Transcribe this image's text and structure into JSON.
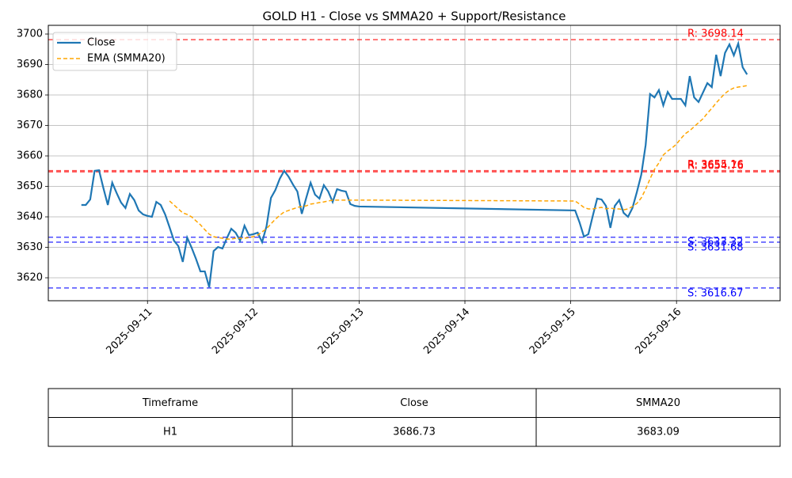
{
  "chart_data": {
    "type": "line",
    "title": "GOLD H1 - Close vs SMMA20 + Support/Resistance",
    "x": [
      -15,
      -14,
      -13,
      -12,
      -11,
      -10,
      -9,
      -8,
      -7,
      -6,
      -5,
      -4,
      -3,
      -2,
      -1,
      0,
      1,
      2,
      3,
      4,
      5,
      6,
      7,
      8,
      9,
      10,
      11,
      12,
      13,
      14,
      15,
      16,
      17,
      18,
      19,
      20,
      21,
      22,
      23,
      24,
      25,
      26,
      27,
      28,
      29,
      30,
      31,
      32,
      33,
      34,
      35,
      36,
      37,
      38,
      39,
      40,
      41,
      42,
      43,
      44,
      45,
      46,
      47,
      48,
      97,
      98,
      99,
      100,
      101,
      102,
      103,
      104,
      105,
      106,
      107,
      108,
      109,
      110,
      111,
      112,
      113,
      114,
      115,
      116,
      117,
      118,
      119,
      120,
      121,
      122,
      123,
      124,
      125,
      126,
      127,
      128,
      129,
      130,
      131,
      132,
      133,
      134,
      135,
      136
    ],
    "series": [
      {
        "name": "Close",
        "color": "#1f77b4",
        "dash": false,
        "values": [
          3643.9,
          3643.9,
          3645.7,
          3655.1,
          3655.3,
          3649.4,
          3643.9,
          3651.2,
          3647.8,
          3644.7,
          3642.9,
          3647.5,
          3645.5,
          3642.1,
          3640.8,
          3640.3,
          3640.0,
          3644.9,
          3643.9,
          3640.8,
          3636.6,
          3632.2,
          3630.4,
          3625.2,
          3633.2,
          3629.9,
          3626.2,
          3622.1,
          3622.1,
          3616.9,
          3628.8,
          3630.1,
          3629.6,
          3633.0,
          3636.1,
          3634.8,
          3632.2,
          3637.1,
          3634.0,
          3634.3,
          3634.8,
          3631.7,
          3636.9,
          3646.2,
          3648.8,
          3652.5,
          3655.1,
          3653.2,
          3650.6,
          3648.3,
          3641.0,
          3646.2,
          3651.2,
          3647.3,
          3646.0,
          3650.4,
          3648.3,
          3644.9,
          3649.1,
          3648.6,
          3648.3,
          3644.2,
          3643.6,
          3643.4,
          3642.1,
          3638.2,
          3633.5,
          3634.3,
          3640.3,
          3646.0,
          3645.7,
          3643.6,
          3636.4,
          3643.6,
          3645.5,
          3641.3,
          3640.0,
          3642.9,
          3648.1,
          3653.8,
          3663.6,
          3680.3,
          3679.2,
          3681.6,
          3676.6,
          3681.0,
          3678.7,
          3678.7,
          3678.7,
          3676.6,
          3686.2,
          3679.2,
          3677.7,
          3680.8,
          3683.9,
          3682.6,
          3693.2,
          3686.2,
          3693.8,
          3696.6,
          3693.0,
          3696.9,
          3689.1,
          3686.73
        ]
      },
      {
        "name": "EMA (SMMA20)",
        "color": "orange",
        "dash": true,
        "values": [
          null,
          null,
          null,
          null,
          null,
          null,
          null,
          null,
          null,
          null,
          null,
          null,
          null,
          null,
          null,
          null,
          null,
          null,
          null,
          null,
          3645.2,
          3643.9,
          3642.6,
          3641.3,
          3640.8,
          3640.0,
          3638.7,
          3637.4,
          3635.8,
          3634.3,
          3633.5,
          3633.2,
          3633.0,
          3632.7,
          3632.7,
          3633.0,
          3633.0,
          3633.0,
          3633.2,
          3633.5,
          3634.0,
          3635.1,
          3636.1,
          3637.7,
          3639.2,
          3640.5,
          3641.6,
          3642.1,
          3642.6,
          3643.1,
          3643.4,
          3643.6,
          3644.2,
          3644.4,
          3644.7,
          3644.9,
          3645.2,
          3645.5,
          3645.5,
          3645.5,
          3645.5,
          3645.5,
          3645.5,
          3645.5,
          3645.2,
          3644.2,
          3643.1,
          3642.6,
          3642.6,
          3642.9,
          3643.1,
          3642.6,
          3642.9,
          3642.6,
          3642.6,
          3642.3,
          3642.6,
          3643.4,
          3644.4,
          3646.2,
          3649.1,
          3652.5,
          3655.6,
          3657.7,
          3660.3,
          3661.6,
          3662.6,
          3663.9,
          3665.7,
          3667.3,
          3668.3,
          3669.6,
          3670.9,
          3672.2,
          3674.0,
          3675.6,
          3677.4,
          3679.0,
          3680.5,
          3681.6,
          3682.3,
          3682.6,
          3682.8,
          3683.09
        ]
      }
    ],
    "levels": [
      {
        "label": "R: 3698.14",
        "value": 3698.14,
        "color": "red"
      },
      {
        "label": "R: 3655.16",
        "value": 3655.16,
        "color": "red"
      },
      {
        "label": "R: 3654.76",
        "value": 3654.76,
        "color": "red"
      },
      {
        "label": "S: 3633.32",
        "value": 3633.32,
        "color": "blue"
      },
      {
        "label": "S: 3631.68",
        "value": 3631.68,
        "color": "blue"
      },
      {
        "label": "S: 3616.67",
        "value": 3616.67,
        "color": "blue"
      }
    ],
    "xlim": [
      -22.5,
      143.5
    ],
    "xticks": [
      {
        "value": 0,
        "label": "2025-09-11"
      },
      {
        "value": 24,
        "label": "2025-09-12"
      },
      {
        "value": 48,
        "label": "2025-09-13"
      },
      {
        "value": 72,
        "label": "2025-09-14"
      },
      {
        "value": 96,
        "label": "2025-09-15"
      },
      {
        "value": 120,
        "label": "2025-09-16"
      }
    ],
    "ylim": [
      3612.47,
      3702.86
    ],
    "yticks": [
      3620,
      3630,
      3640,
      3650,
      3660,
      3670,
      3680,
      3690,
      3700
    ],
    "grid": true,
    "legend": "upper left"
  },
  "table": {
    "columns": [
      "Timeframe",
      "Close",
      "SMMA20"
    ],
    "rows": [
      [
        "H1",
        "3686.73",
        "3683.09"
      ]
    ]
  }
}
